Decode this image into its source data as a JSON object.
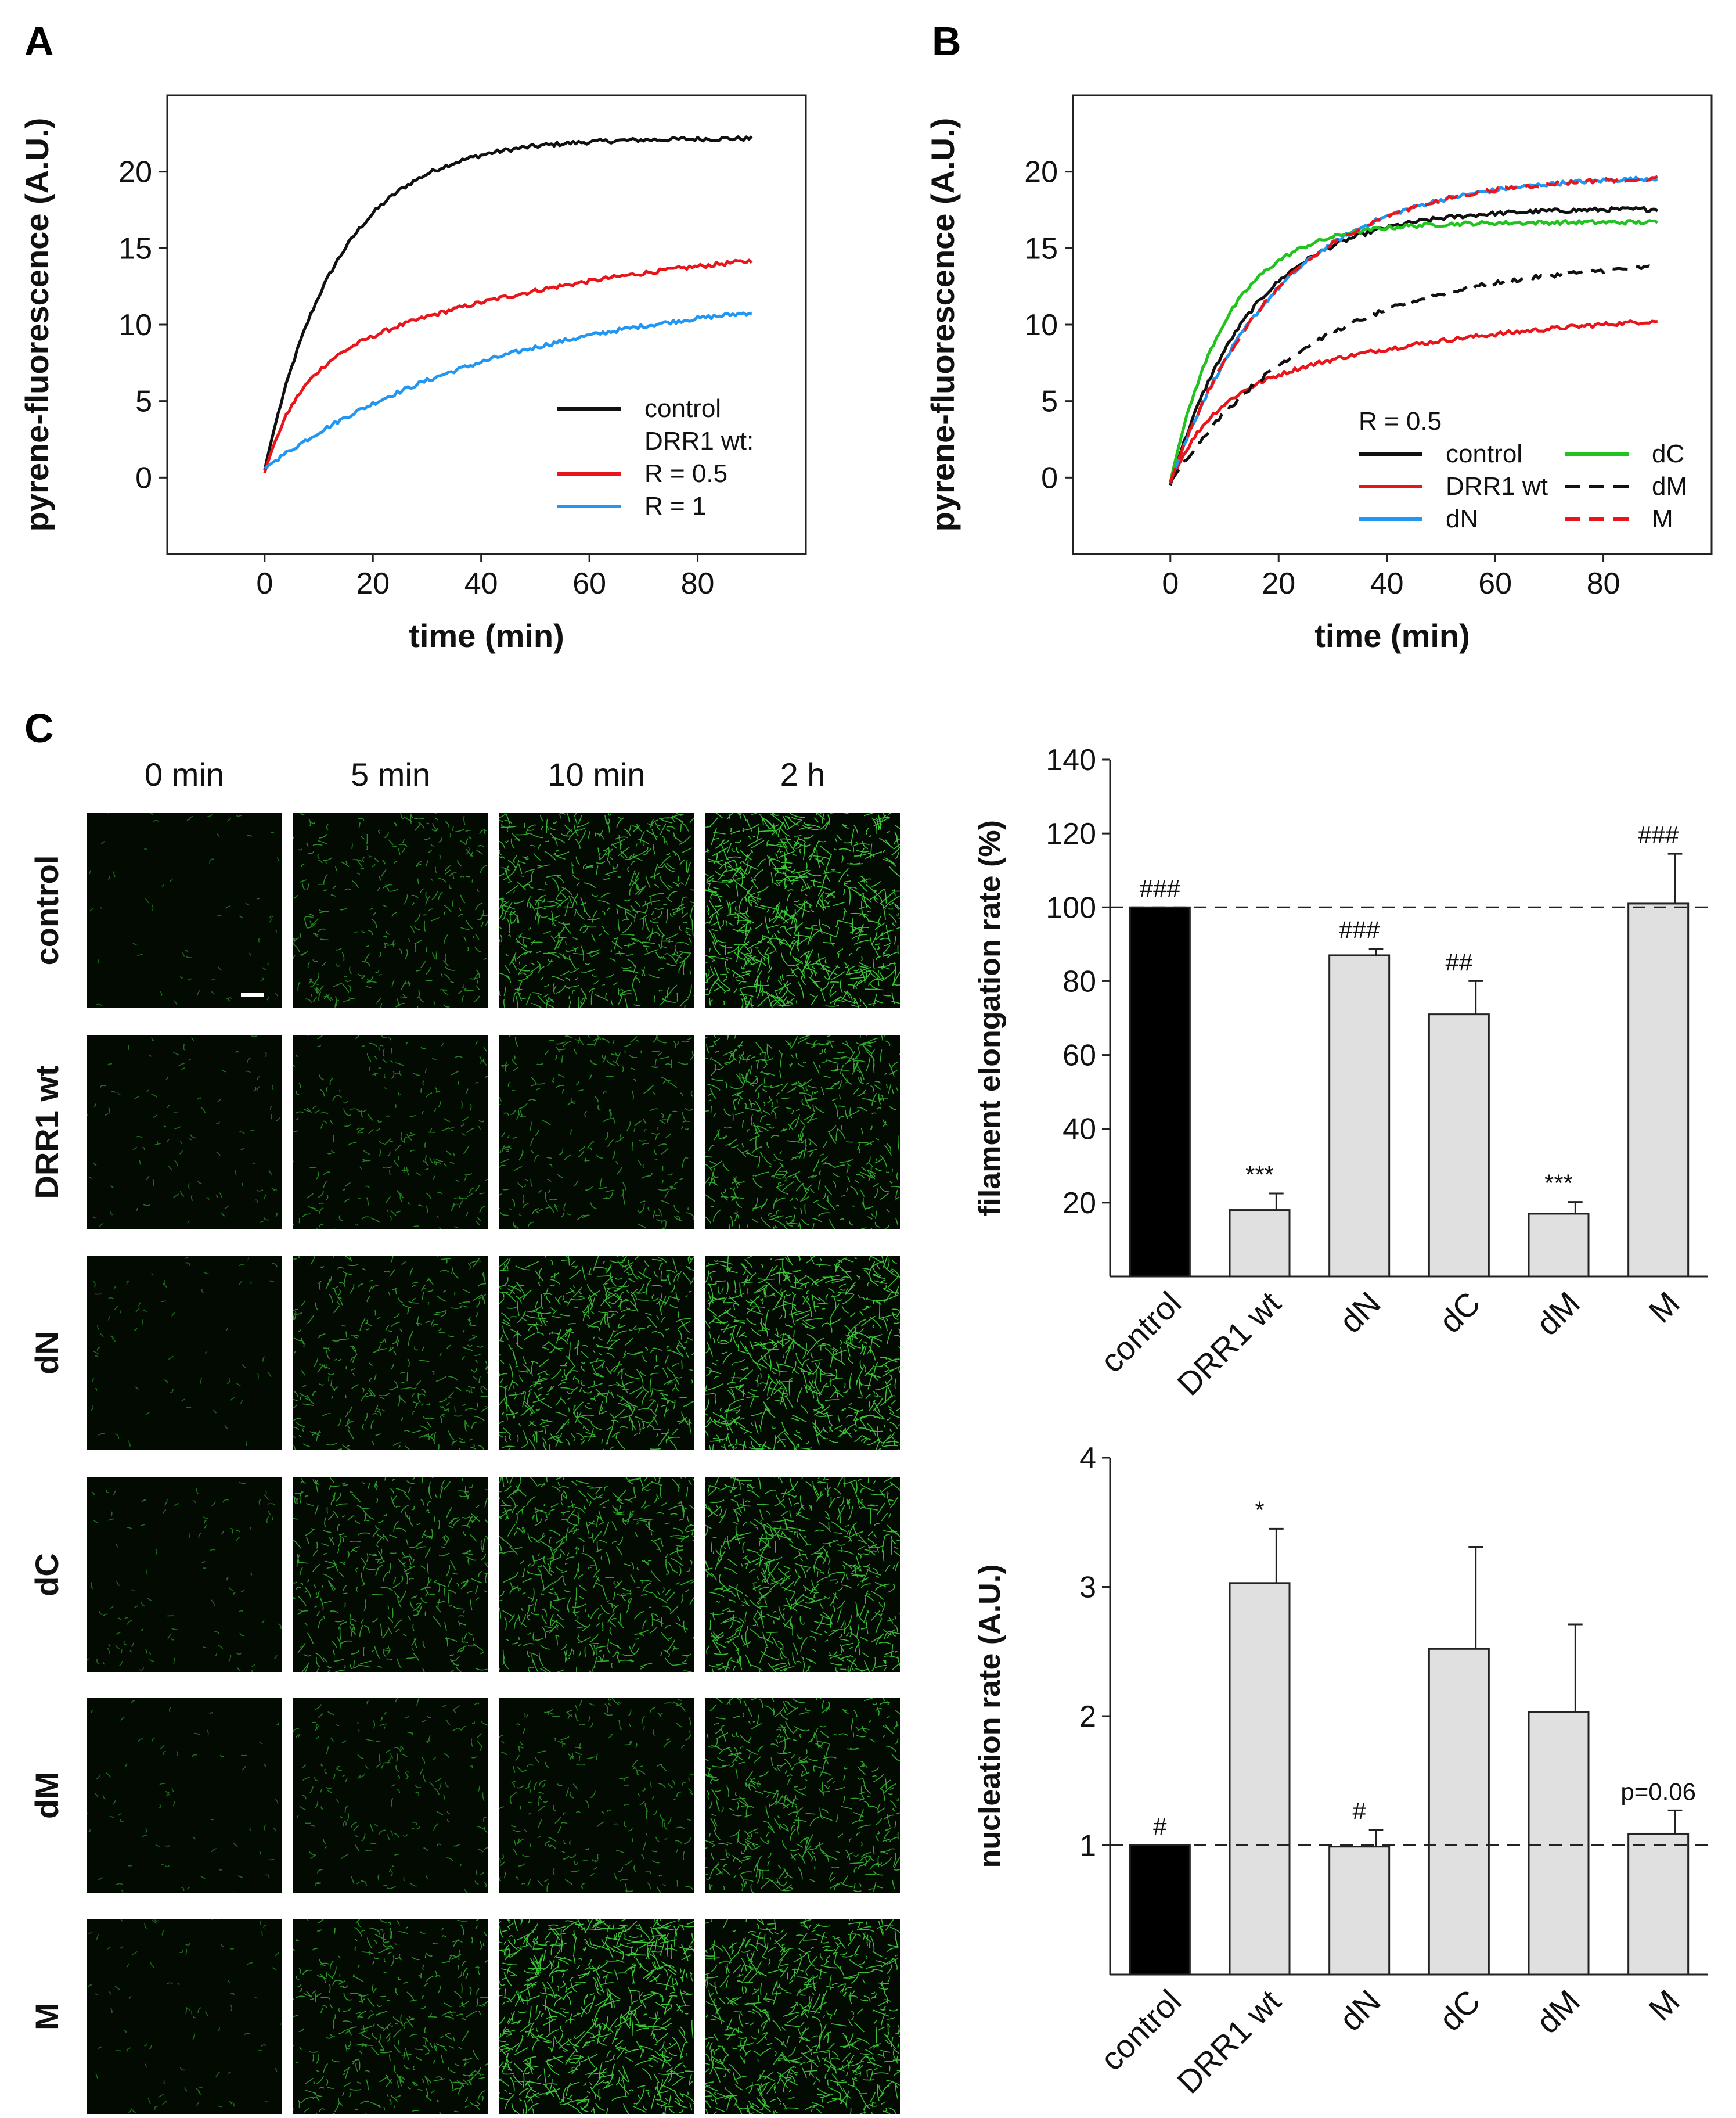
{
  "panel_letters": {
    "a": "A",
    "b": "B",
    "c": "C"
  },
  "colors": {
    "black": "#111111",
    "red": "#e8161b",
    "blue": "#2196f3",
    "green": "#22c21f",
    "bar_control": "#000000",
    "bar_other": "#e0e0e0",
    "micro_bg": "#020a02",
    "micro_fg": "#3fd23a"
  },
  "chart_data": [
    {
      "id": "A",
      "type": "line",
      "xlabel": "time (min)",
      "ylabel": "pyrene-fluorescence (A.U.)",
      "xlim": [
        -18,
        100
      ],
      "ylim": [
        -5,
        25
      ],
      "xticks": [
        0,
        20,
        40,
        60,
        80
      ],
      "yticks": [
        0,
        5,
        10,
        15,
        20
      ],
      "legend": {
        "header": "",
        "items": [
          {
            "label": "control",
            "color": "#111111",
            "dash": false
          },
          {
            "label": "DRR1 wt:",
            "color": null,
            "dash": false
          },
          {
            "label": "R = 0.5",
            "color": "#e8161b",
            "dash": false
          },
          {
            "label": "R = 1",
            "color": "#2196f3",
            "dash": false
          }
        ]
      },
      "series": [
        {
          "name": "control",
          "color": "#111111",
          "start": 0.5,
          "plateau": 22.2,
          "tau": 13.5
        },
        {
          "name": "R = 0.5",
          "color": "#e8161b",
          "start": 0.3,
          "fast_amp": 6.3,
          "fast_tau": 6,
          "slow_amp": 9.4,
          "slow_tau": 55
        },
        {
          "name": "R = 1",
          "color": "#2196f3",
          "start": 0.6,
          "plateau": 12.4,
          "tau": 45
        }
      ]
    },
    {
      "id": "B",
      "type": "line",
      "xlabel": "time (min)",
      "ylabel": "pyrene-fluorescence (A.U.)",
      "xlim": [
        -18,
        100
      ],
      "ylim": [
        -5,
        25
      ],
      "xticks": [
        0,
        20,
        40,
        60,
        80
      ],
      "yticks": [
        0,
        5,
        10,
        15,
        20
      ],
      "legend": {
        "header": "R = 0.5",
        "items": [
          {
            "label": "control",
            "color": "#111111",
            "dash": false
          },
          {
            "label": "DRR1 wt",
            "color": "#e8161b",
            "dash": false
          },
          {
            "label": "dN",
            "color": "#2196f3",
            "dash": false
          },
          {
            "label": "dC",
            "color": "#22c21f",
            "dash": false
          },
          {
            "label": "dM",
            "color": "#111111",
            "dash": true
          },
          {
            "label": "M",
            "color": "#e8161b",
            "dash": true
          }
        ]
      },
      "series": [
        {
          "name": "control",
          "color": "#111111",
          "dash": false,
          "start": -0.5,
          "plateau": 17.6,
          "tau": 15
        },
        {
          "name": "DRR1 wt",
          "color": "#e8161b",
          "dash": false,
          "start": -0.4,
          "fast_amp": 5.3,
          "fast_tau": 7,
          "slow_amp": 6.4,
          "slow_tau": 50
        },
        {
          "name": "dN",
          "color": "#2196f3",
          "dash": false,
          "start": -0.3,
          "plateau": 19.8,
          "tau": 20
        },
        {
          "name": "dC",
          "color": "#22c21f",
          "dash": false,
          "start": -0.3,
          "plateau": 16.7,
          "tau": 10.5
        },
        {
          "name": "dM",
          "color": "#111111",
          "dash": true,
          "start": -0.3,
          "plateau": 14.3,
          "tau": 27
        },
        {
          "name": "M",
          "color": "#e8161b",
          "dash": true,
          "start": -0.3,
          "plateau": 19.8,
          "tau": 20
        }
      ]
    },
    {
      "id": "C-top",
      "type": "bar",
      "ylabel": "filament elongation rate (%)",
      "ylim": [
        0,
        140
      ],
      "yticks": [
        20,
        40,
        60,
        80,
        100,
        120,
        140
      ],
      "reference_line": 100,
      "categories": [
        "control",
        "DRR1 wt",
        "dN",
        "dC",
        "dM",
        "M"
      ],
      "values": [
        100,
        18,
        87,
        71,
        17,
        101
      ],
      "errors": [
        0,
        4.5,
        1.8,
        9,
        3.2,
        13.5
      ],
      "annotations": [
        "###",
        "***",
        "###",
        "##",
        "***",
        "###"
      ]
    },
    {
      "id": "C-bottom",
      "type": "bar",
      "ylabel": "nucleation rate (A.U.)",
      "ylim": [
        0,
        4
      ],
      "yticks": [
        1,
        2,
        3,
        4
      ],
      "reference_line": 1,
      "categories": [
        "control",
        "DRR1 wt",
        "dN",
        "dC",
        "dM",
        "M"
      ],
      "values": [
        1.0,
        3.03,
        0.99,
        2.52,
        2.03,
        1.09
      ],
      "errors": [
        0,
        0.42,
        0.13,
        0.79,
        0.68,
        0.18
      ],
      "annotations": [
        "#",
        "*",
        "#",
        "",
        "",
        "p=0.06"
      ]
    }
  ],
  "microscopy": {
    "time_labels": [
      "0 min",
      "5 min",
      "10 min",
      "2 h"
    ],
    "row_labels": [
      "control",
      "DRR1 wt",
      "dN",
      "dC",
      "dM",
      "M"
    ],
    "density": [
      [
        0.04,
        0.38,
        0.75,
        1.0
      ],
      [
        0.1,
        0.28,
        0.35,
        0.7
      ],
      [
        0.05,
        0.45,
        0.8,
        0.95
      ],
      [
        0.1,
        0.55,
        0.7,
        0.85
      ],
      [
        0.05,
        0.22,
        0.3,
        0.65
      ],
      [
        0.07,
        0.5,
        1.0,
        0.9
      ]
    ]
  }
}
